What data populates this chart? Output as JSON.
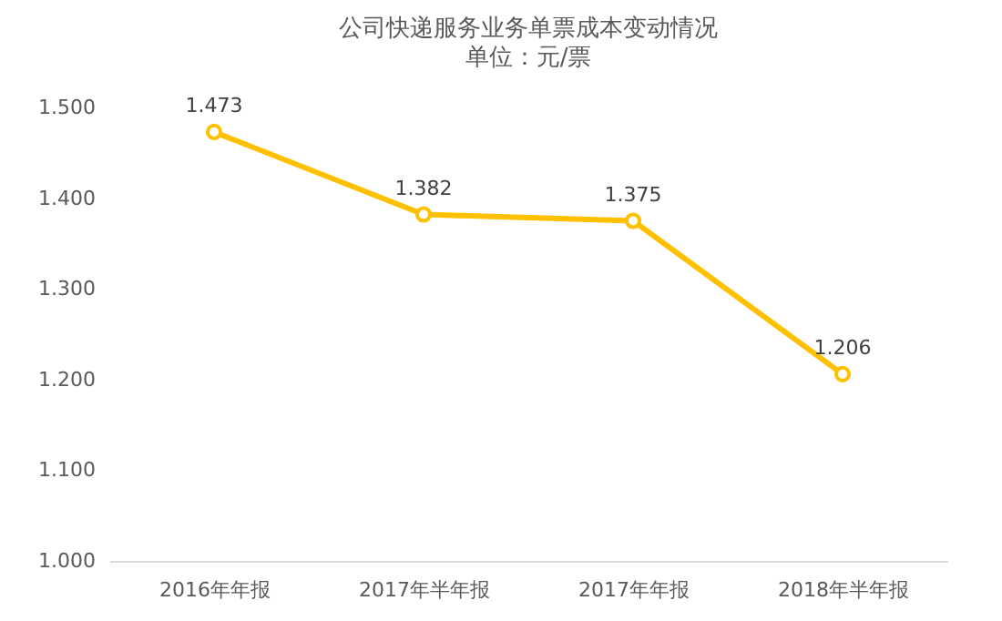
{
  "chart_data": {
    "type": "line",
    "title": "公司快递服务业务单票成本变动情况",
    "subtitle": "单位：元/票",
    "categories": [
      "2016年年报",
      "2017年半年报",
      "2017年年报",
      "2018年半年报"
    ],
    "series": [
      {
        "color": "#ffc000",
        "values": [
          1.473,
          1.382,
          1.375,
          1.206
        ]
      }
    ],
    "ylim": [
      1.0,
      1.5
    ],
    "yticks": [
      {
        "value": 1.0,
        "label": "1.000"
      },
      {
        "value": 1.1,
        "label": "1.100"
      },
      {
        "value": 1.2,
        "label": "1.200"
      },
      {
        "value": 1.3,
        "label": "1.300"
      },
      {
        "value": 1.4,
        "label": "1.400"
      },
      {
        "value": 1.5,
        "label": "1.500"
      }
    ],
    "data_labels": true,
    "marker": "circle",
    "line_style": "solid",
    "grid": false
  }
}
